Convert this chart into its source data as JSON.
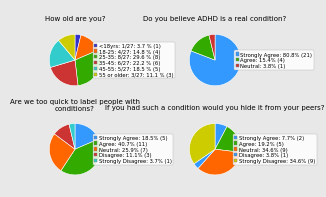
{
  "chart1": {
    "title": "How old are you?",
    "labels": [
      "<18yrs",
      "18-25",
      "25-35",
      "35-45",
      "45-55",
      "55 or older"
    ],
    "values": [
      3.7,
      14.8,
      29.6,
      22.2,
      18.5,
      11.1
    ],
    "colors": [
      "#3333cc",
      "#ff6600",
      "#33aa00",
      "#cc3333",
      "#33cccc",
      "#cccc00"
    ],
    "legend_labels": [
      "<18yrs: 1/27: 3.7 % (1)",
      "18-25: 4/27: 14.8 % (4)",
      "25-35: 8/27: 29.6 % (8)",
      "35-45: 6/27: 22.2 % (6)",
      "45-55: 5/27: 18.5 % (5)",
      "55 or older: 3/27: 11.1 % (3)"
    ]
  },
  "chart2": {
    "title": "Do you believe ADHD is a real condition?",
    "labels": [
      "Strongly Agree",
      "Agree",
      "Neutral"
    ],
    "values": [
      80.8,
      15.4,
      3.8
    ],
    "colors": [
      "#3399ff",
      "#33aa00",
      "#cc3333"
    ],
    "legend_labels": [
      "Strongly Agree: 80.8% (21)",
      "Agree: 15.4% (4)",
      "Neutral: 3.8% (1)"
    ]
  },
  "chart3": {
    "title": "Are we too quick to label people with conditions?",
    "labels": [
      "Strongly Agree",
      "Agree",
      "Neutral",
      "Disagree",
      "Strongly Disagree"
    ],
    "values": [
      18.5,
      40.7,
      25.9,
      11.1,
      3.7
    ],
    "colors": [
      "#3399ff",
      "#33aa00",
      "#ff6600",
      "#cc3333",
      "#33cccc"
    ],
    "legend_labels": [
      "Strongly Agree: 18.5% (5)",
      "Agree: 40.7% (11)",
      "Neutral: 25.9% (7)",
      "Disagree: 11.1% (3)",
      "Strongly Disagree: 3.7% (1)"
    ]
  },
  "chart4": {
    "title": "If you had such a condition would you hide it from your peers?",
    "labels": [
      "Strongly Agree",
      "Agree",
      "Neutral",
      "Disagree",
      "Strongly Disagree"
    ],
    "values": [
      7.7,
      19.2,
      34.6,
      3.8,
      34.6
    ],
    "colors": [
      "#3399ff",
      "#33aa00",
      "#ff6600",
      "#3399ff",
      "#cccc00"
    ],
    "legend_labels": [
      "Strongly Agree: 7.7% (2)",
      "Agree: 19.2% (5)",
      "Neutral: 34.6% (9)",
      "Disagree: 3.8% (1)",
      "Strongly Disagree: 34.6% (9)"
    ]
  },
  "background_color": "#e8e8e8",
  "legend_fontsize": 3.8,
  "title_fontsize": 5.0
}
